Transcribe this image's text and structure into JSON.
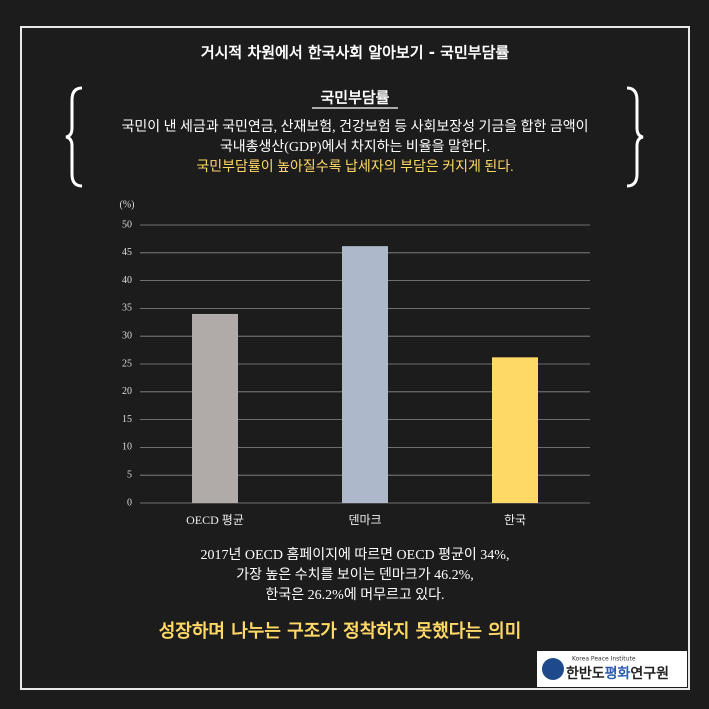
{
  "header": {
    "title": "거시적 차원에서 한국사회 알아보기 - 국민부담률"
  },
  "definition": {
    "term": "국민부담률",
    "lines": [
      "국민이 낸 세금과 국민연금, 산재보험, 건강보험 등 사회보장성 기금을 합한 금액이",
      "국내총생산(GDP)에서 차지하는 비율을 말한다."
    ],
    "highlight": "국민부담률이 높아질수록 납세자의 부담은 커지게 된다."
  },
  "chart_data": {
    "type": "bar",
    "y_label": "(%)",
    "categories": [
      "OECD 평균",
      "덴마크",
      "한국"
    ],
    "values": [
      34,
      46.2,
      26.2
    ],
    "colors": [
      "#b0aba8",
      "#adb9ca",
      "#ffd966"
    ],
    "ylim": [
      0,
      50
    ],
    "yticks": [
      0,
      5,
      10,
      15,
      20,
      25,
      30,
      35,
      40,
      45,
      50
    ],
    "grid": true
  },
  "notes": [
    "2017년 OECD 홈페이지에 따르면 OECD 평균이 34%,",
    "가장 높은 수치를 보이는 덴마크가  46.2%,",
    "한국은 26.2%에 머무르고 있다."
  ],
  "conclusion": "성장하며 나누는 구조가 정착하지 못했다는 의미",
  "logo": {
    "subtitle": "Korea Peace Institute",
    "name_parts": [
      "한반도",
      "평화",
      "연구원"
    ]
  }
}
